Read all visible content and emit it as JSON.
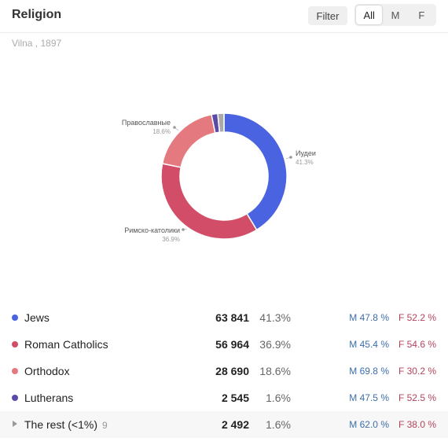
{
  "header": {
    "title": "Religion",
    "filter_label": "Filter",
    "segments": [
      {
        "label": "All",
        "active": true
      },
      {
        "label": "M",
        "active": false
      },
      {
        "label": "F",
        "active": false
      }
    ]
  },
  "subtitle": "Vilna , 1897",
  "chart_data": {
    "type": "pie",
    "categories": [
      "Иудеи",
      "Римско-католики",
      "Православные",
      "Lutherans",
      "The rest (<1%)"
    ],
    "values": [
      41.3,
      36.9,
      18.6,
      1.6,
      1.6
    ],
    "labels": [
      {
        "name": "Иудеи",
        "pct": "41.3%"
      },
      {
        "name": "Римско-католики",
        "pct": "36.9%"
      },
      {
        "name": "Православные",
        "pct": "18.6%"
      }
    ],
    "colors": [
      "#4a63e0",
      "#d24d68",
      "#e47a80",
      "#5a4ba8",
      "#aaaaaa"
    ]
  },
  "table": {
    "rows": [
      {
        "name": "Jews",
        "color": "#4a63e0",
        "value": "63 841",
        "pct": "41.3%",
        "m": "M 47.8 %",
        "f": "F 52.2 %"
      },
      {
        "name": "Roman Catholics",
        "color": "#d24d68",
        "value": "56 964",
        "pct": "36.9%",
        "m": "M 45.4 %",
        "f": "F 54.6 %"
      },
      {
        "name": "Orthodox",
        "color": "#e47a80",
        "value": "28 690",
        "pct": "18.6%",
        "m": "M 69.8 %",
        "f": "F 30.2 %"
      },
      {
        "name": "Lutherans",
        "color": "#5a4ba8",
        "value": "2 545",
        "pct": "1.6%",
        "m": "M 47.5 %",
        "f": "F 52.5 %"
      }
    ],
    "rest": {
      "name": "The rest (<1%)",
      "count": "9",
      "value": "2 492",
      "pct": "1.6%",
      "m": "M 62.0 %",
      "f": "F 38.0 %"
    }
  }
}
